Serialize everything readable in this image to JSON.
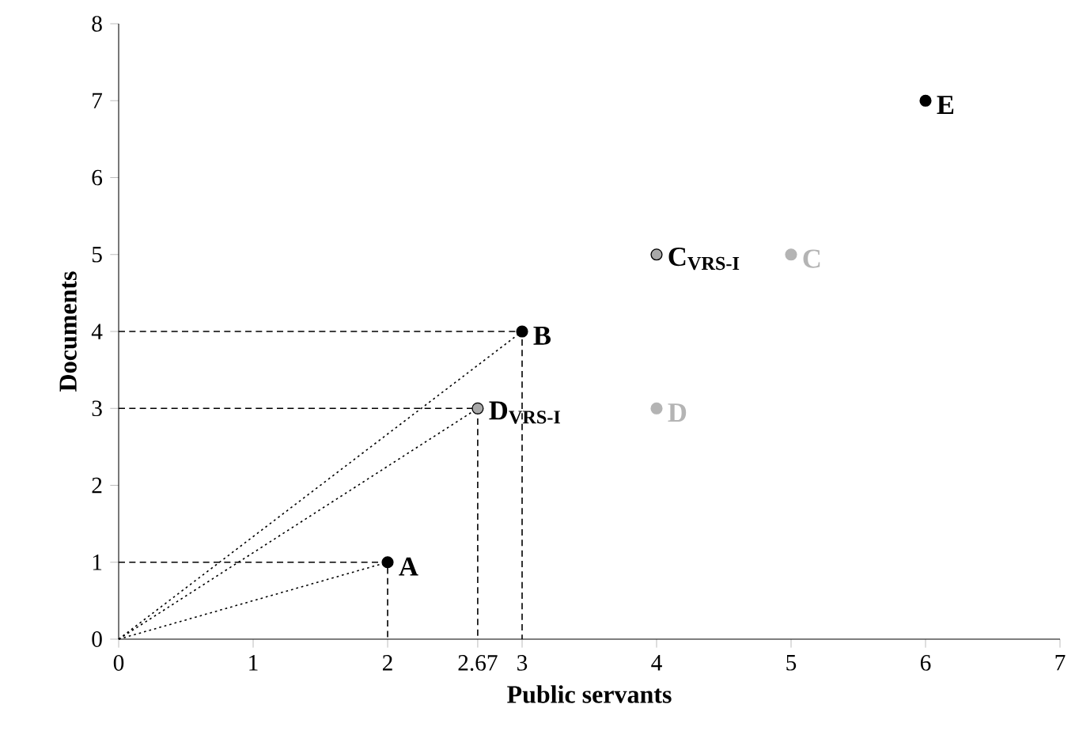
{
  "chart_data": {
    "type": "scatter",
    "xlabel": "Public servants",
    "ylabel": "Documents",
    "xlim": [
      0,
      7
    ],
    "ylim": [
      0,
      8
    ],
    "xticks": [
      0,
      1,
      2,
      2.67,
      3,
      4,
      5,
      6,
      7
    ],
    "yticks": [
      0,
      1,
      2,
      3,
      4,
      5,
      6,
      7,
      8
    ],
    "grid": false,
    "series": [
      {
        "type": "line",
        "line_style": "dotted",
        "color": "#000000",
        "x": [
          0,
          2
        ],
        "values": [
          0,
          1
        ]
      },
      {
        "type": "line",
        "line_style": "dotted",
        "color": "#000000",
        "x": [
          0,
          3
        ],
        "values": [
          0,
          4
        ]
      },
      {
        "type": "line",
        "line_style": "dotted",
        "color": "#000000",
        "x": [
          0,
          2.67
        ],
        "values": [
          0,
          3
        ]
      },
      {
        "type": "line",
        "line_style": "dashed",
        "color": "#000000",
        "x": [
          0,
          2,
          2
        ],
        "values": [
          1,
          1,
          0
        ]
      },
      {
        "type": "line",
        "line_style": "dashed",
        "color": "#000000",
        "x": [
          0,
          3,
          3
        ],
        "values": [
          4,
          4,
          0
        ]
      },
      {
        "type": "line",
        "line_style": "dashed",
        "color": "#000000",
        "x": [
          0,
          2.67,
          2.67
        ],
        "values": [
          3,
          3,
          0
        ]
      },
      {
        "marker": "circle",
        "color": "#000000",
        "x": [
          2,
          3,
          6
        ],
        "values": [
          1,
          4,
          7
        ]
      },
      {
        "marker": "circle",
        "color": "#b4b4b4",
        "x": [
          5,
          4
        ],
        "values": [
          5,
          3
        ]
      },
      {
        "marker": "circle",
        "color": "#a8a8a8",
        "x": [
          4,
          2.67
        ],
        "values": [
          5,
          3
        ]
      }
    ],
    "annotations": [
      {
        "text": "A",
        "x": 2,
        "y": 1
      },
      {
        "text": "B",
        "x": 3,
        "y": 4
      },
      {
        "text": "C",
        "x": 5,
        "y": 5
      },
      {
        "text": "D",
        "x": 4,
        "y": 3
      },
      {
        "text": "E",
        "x": 6,
        "y": 7
      },
      {
        "text": "C$_{VRS-I}$",
        "x": 4,
        "y": 5
      },
      {
        "text": "D$_{VRS-I}$",
        "x": 2.67,
        "y": 3
      }
    ]
  }
}
